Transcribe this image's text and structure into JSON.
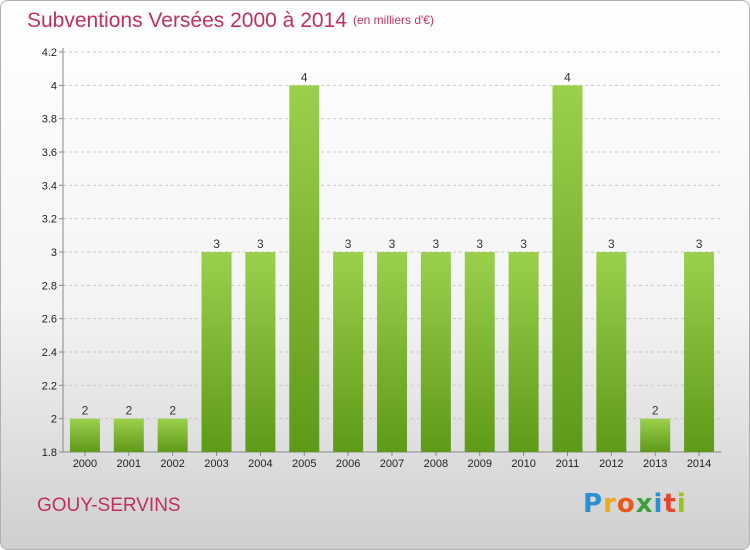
{
  "header": {
    "title": "Subventions Versées 2000 à 2014",
    "unit": "(en milliers d'€)"
  },
  "footer": {
    "commune": "GOUY-SERVINS",
    "brand": "Proxiti"
  },
  "colors": {
    "title": "#c0305a",
    "bar_top": "#9bd04c",
    "bar_bottom": "#5e9a18",
    "grid": "#c8c8c8"
  },
  "chart_data": {
    "type": "bar",
    "title": "Subventions Versées 2000 à 2014",
    "subtitle": "(en milliers d'€)",
    "categories": [
      "2000",
      "2001",
      "2002",
      "2003",
      "2004",
      "2005",
      "2006",
      "2007",
      "2008",
      "2009",
      "2010",
      "2011",
      "2012",
      "2013",
      "2014"
    ],
    "values": [
      2,
      2,
      2,
      3,
      3,
      4,
      3,
      3,
      3,
      3,
      3,
      4,
      3,
      2,
      3
    ],
    "data_labels": [
      "2",
      "2",
      "2",
      "3",
      "3",
      "4",
      "3",
      "3",
      "3",
      "3",
      "3",
      "4",
      "3",
      "2",
      "3"
    ],
    "y_ticks": [
      "1.8",
      "2",
      "2.2",
      "2.4",
      "2.6",
      "2.8",
      "3",
      "3.2",
      "3.4",
      "3.6",
      "3.8",
      "4",
      "4.2"
    ],
    "ylim": [
      1.8,
      4.2
    ],
    "grid": true,
    "legend": "none"
  }
}
